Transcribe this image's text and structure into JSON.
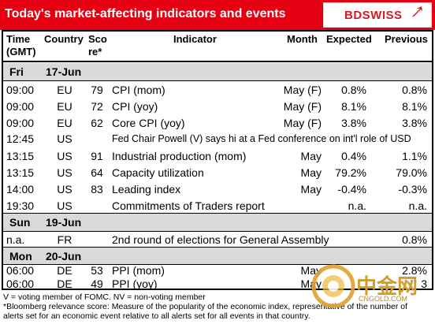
{
  "header": {
    "title": "Today's market-affecting indicators and events",
    "logo_text": "BDSWISS"
  },
  "columns": {
    "time": [
      "Time",
      "(GMT)"
    ],
    "country": "Country",
    "score": [
      "Sco",
      "re*"
    ],
    "indicator": "Indicator",
    "month": "Month",
    "expected": "Expected",
    "previous": "Previous"
  },
  "days": [
    {
      "day": "Fri",
      "date": "17-Jun"
    },
    {
      "day": "Sun",
      "date": "19-Jun"
    },
    {
      "day": "Mon",
      "date": "20-Jun"
    }
  ],
  "rows": [
    {
      "time": "09:00",
      "country": "EU",
      "score": "79",
      "indicator": "CPI (mom)",
      "month": "May (F)",
      "expected": "0.8%",
      "previous": "0.8%"
    },
    {
      "time": "09:00",
      "country": "EU",
      "score": "72",
      "indicator": "CPI (yoy)",
      "month": "May (F)",
      "expected": "8.1%",
      "previous": "8.1%"
    },
    {
      "time": "09:00",
      "country": "EU",
      "score": "62",
      "indicator": "Core CPI (yoy)",
      "month": "May (F)",
      "expected": "3.8%",
      "previous": "3.8%"
    },
    {
      "time": "12:45",
      "country": "US",
      "score": "",
      "indicator": "Fed Chair Powell (V) says hi at a Fed conference on int'l role of USD",
      "month": "",
      "expected": "",
      "previous": ""
    },
    {
      "time": "13:15",
      "country": "US",
      "score": "91",
      "indicator": "Industrial production (mom)",
      "month": "May",
      "expected": "0.4%",
      "previous": "1.1%"
    },
    {
      "time": "13:15",
      "country": "US",
      "score": "64",
      "indicator": "Capacity utilization",
      "month": "May",
      "expected": "79.2%",
      "previous": "79.0%"
    },
    {
      "time": "14:00",
      "country": "US",
      "score": "83",
      "indicator": "Leading index",
      "month": "May",
      "expected": "-0.4%",
      "previous": "-0.3%"
    },
    {
      "time": "19:30",
      "country": "US",
      "score": "",
      "indicator": "Commitments of Traders  report",
      "month": "",
      "expected": "n.a.",
      "previous": "n.a."
    },
    {
      "time": "n.a.",
      "country": "FR",
      "score": "",
      "indicator": "2nd round of elections for General Assembly",
      "month": "",
      "expected": "",
      "previous": "0.8%"
    },
    {
      "time": "06:00",
      "country": "DE",
      "score": "53",
      "indicator": "PPI (mom)",
      "month": "May",
      "expected": "",
      "previous": "2.8%"
    },
    {
      "time": "06:00",
      "country": "DE",
      "score": "49",
      "indicator": "PPI (yoy)",
      "month": "May",
      "expected": "",
      "previous": "3"
    }
  ],
  "footnotes": [
    "V = voting member of FOMC. NV = non-voting member",
    "*Bloomberg relevance score:  Measure of the popularity of the economic index, representative of the number of",
    "alerts set for an economic event relative to all alerts set for all events in that country."
  ],
  "watermark": {
    "text": "中金网",
    "sub": "CNGOLD.COM"
  },
  "colors": {
    "header_bg": "#e50012",
    "day_bg": "#d9d9d9",
    "logo_red": "#d71920"
  }
}
